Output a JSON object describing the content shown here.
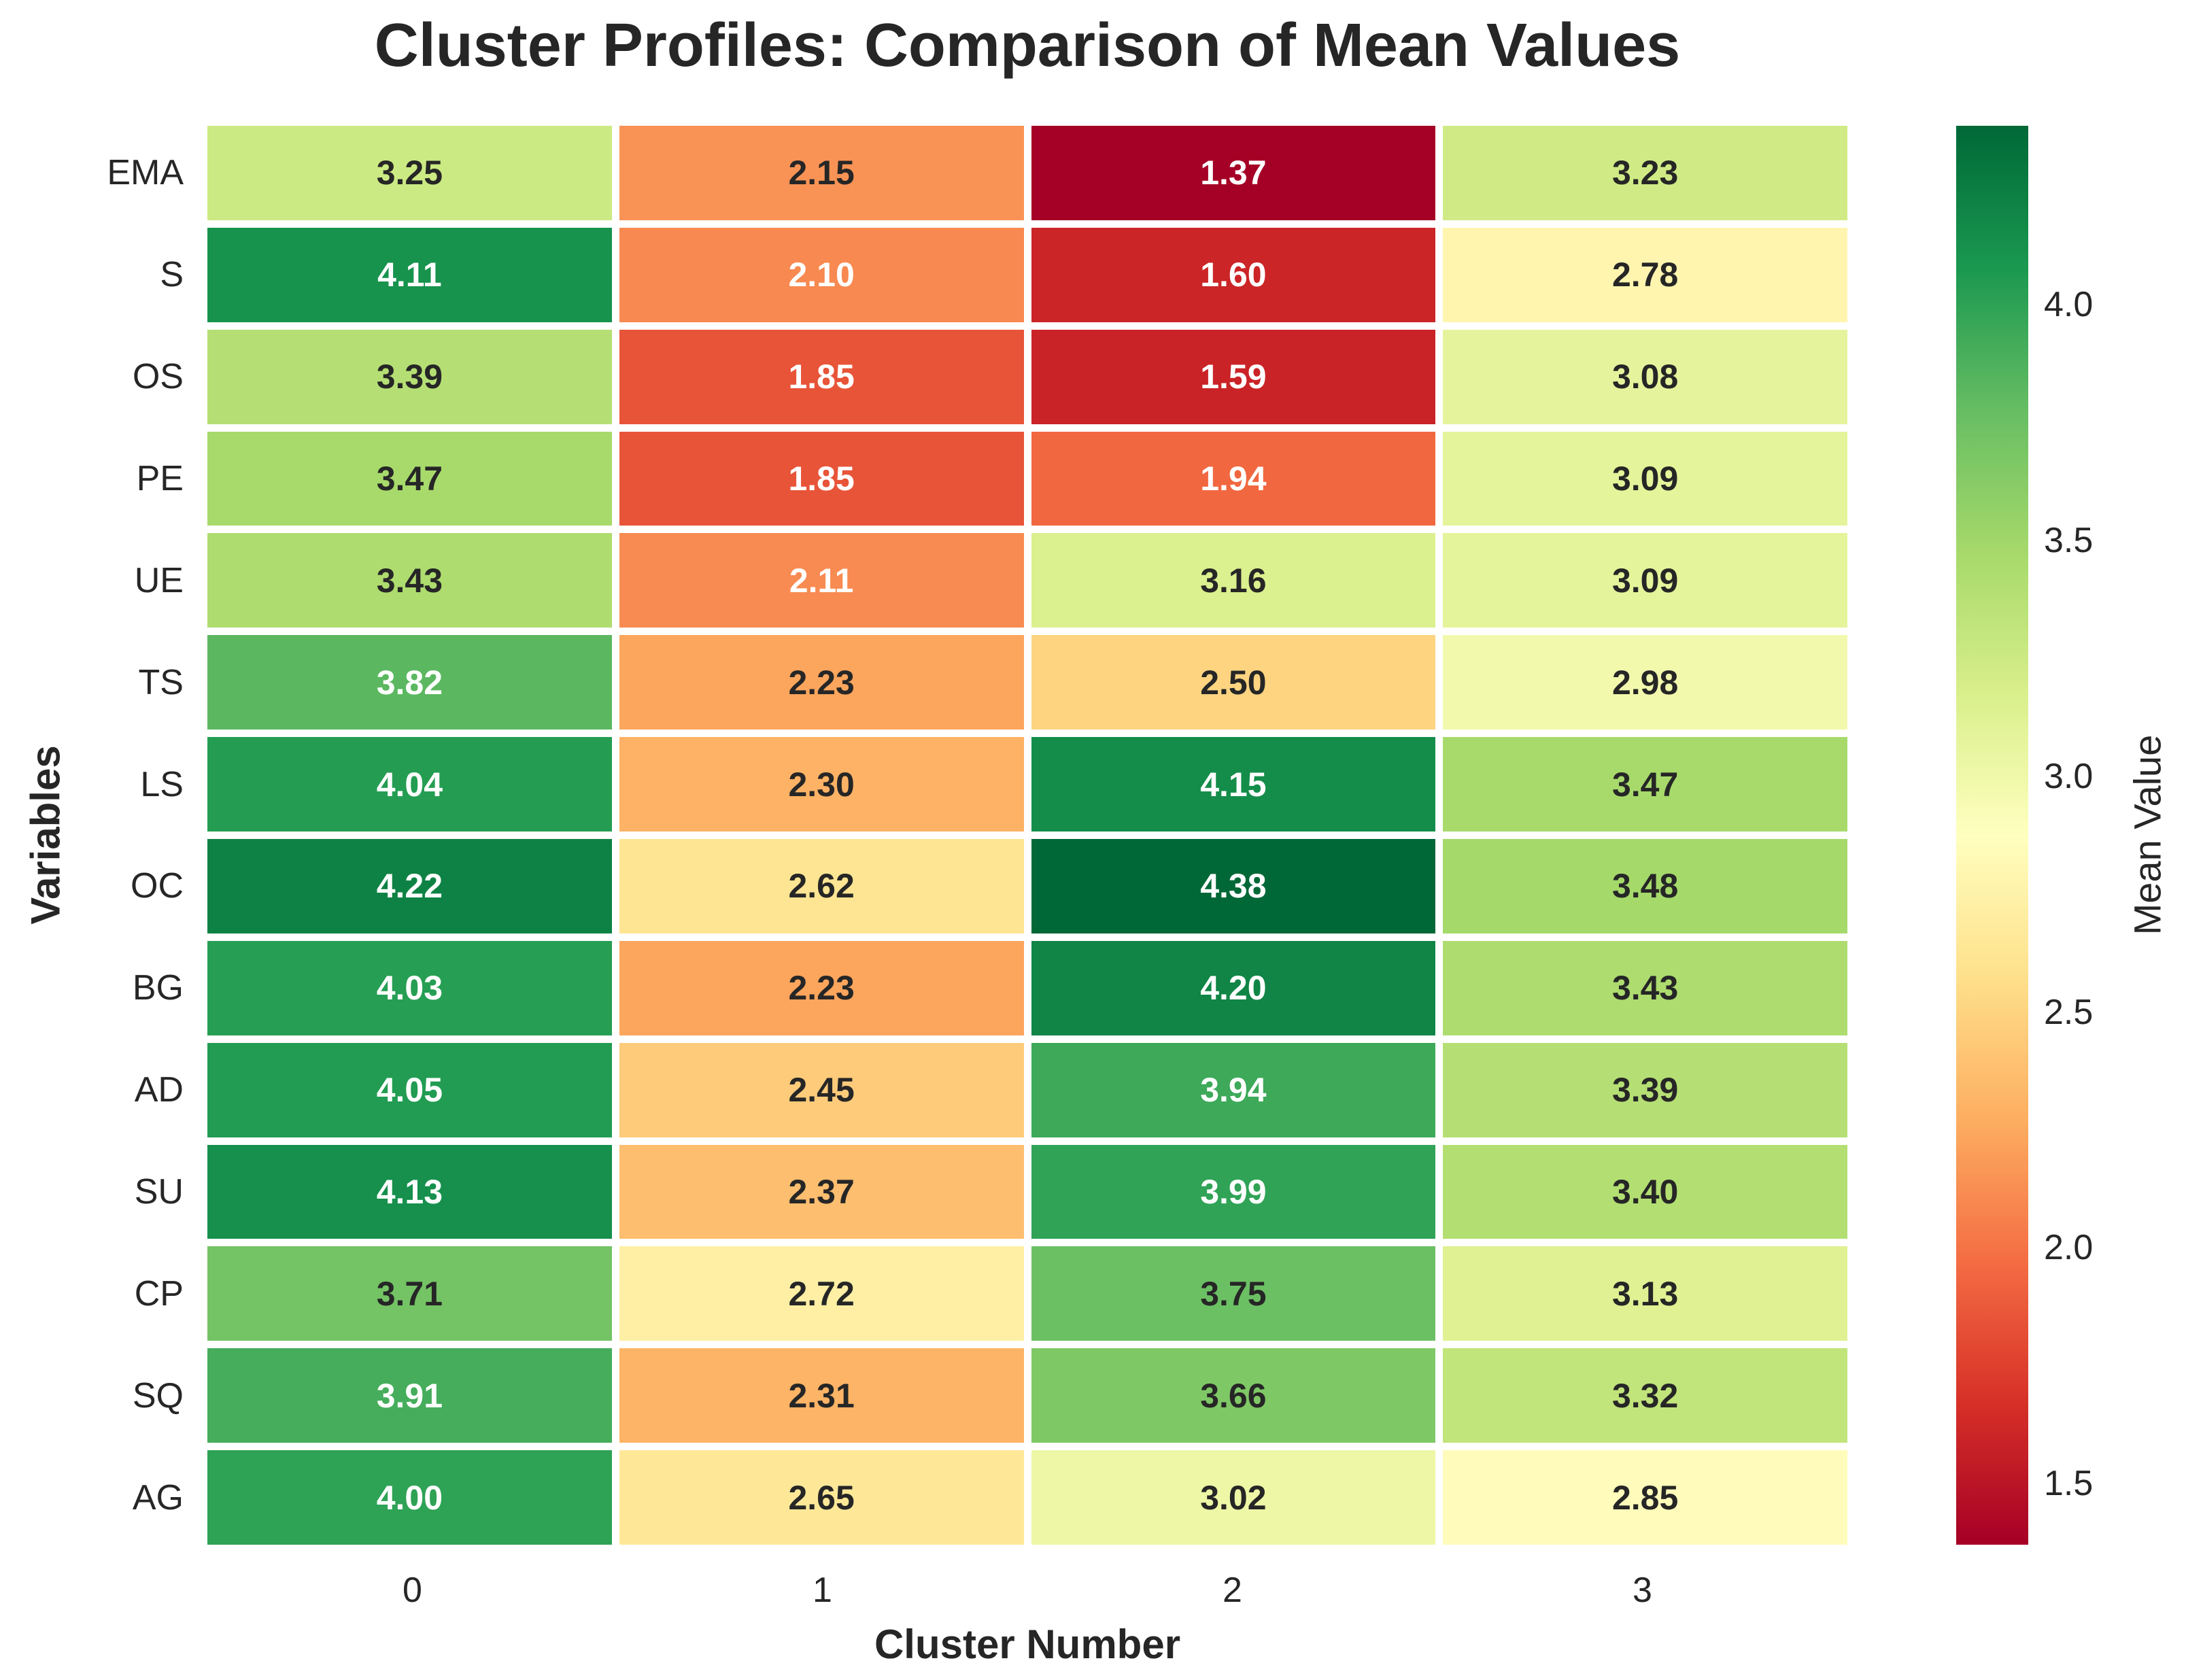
{
  "title": "Cluster Profiles: Comparison of Mean Values",
  "chart_data": {
    "type": "heatmap",
    "title": "Cluster Profiles: Comparison of Mean Values",
    "xlabel": "Cluster Number",
    "ylabel": "Variables",
    "categories": [
      "0",
      "1",
      "2",
      "3"
    ],
    "rows": [
      "EMA",
      "S",
      "OS",
      "PE",
      "UE",
      "TS",
      "LS",
      "OC",
      "BG",
      "AD",
      "SU",
      "CP",
      "SQ",
      "AG"
    ],
    "values": [
      [
        3.25,
        2.15,
        1.37,
        3.23
      ],
      [
        4.11,
        2.1,
        1.6,
        2.78
      ],
      [
        3.39,
        1.85,
        1.59,
        3.08
      ],
      [
        3.47,
        1.85,
        1.94,
        3.09
      ],
      [
        3.43,
        2.11,
        3.16,
        3.09
      ],
      [
        3.82,
        2.23,
        2.5,
        2.98
      ],
      [
        4.04,
        2.3,
        4.15,
        3.47
      ],
      [
        4.22,
        2.62,
        4.38,
        3.48
      ],
      [
        4.03,
        2.23,
        4.2,
        3.43
      ],
      [
        4.05,
        2.45,
        3.94,
        3.39
      ],
      [
        4.13,
        2.37,
        3.99,
        3.4
      ],
      [
        3.71,
        2.72,
        3.75,
        3.13
      ],
      [
        3.91,
        2.31,
        3.66,
        3.32
      ],
      [
        4.0,
        2.65,
        3.02,
        2.85
      ]
    ],
    "annotation_decimals": 2,
    "grid": false,
    "legend_position": "right-colorbar",
    "colormap": {
      "name": "RdYlGn",
      "vmin": 1.37,
      "vmax": 4.38,
      "stops_low_to_high": [
        "#a50026",
        "#d73027",
        "#f46d43",
        "#fdae61",
        "#fee08b",
        "#ffffbf",
        "#d9ef8b",
        "#a6d96a",
        "#66bd63",
        "#1a9850",
        "#006837"
      ]
    },
    "colorbar": {
      "label": "Mean Value",
      "ticks": [
        4.0,
        3.5,
        3.0,
        2.5,
        2.0,
        1.5
      ],
      "tick_labels": [
        "4.0",
        "3.5",
        "3.0",
        "2.5",
        "2.0",
        "1.5"
      ]
    },
    "annotation_text_colors": {
      "dark": "#262626",
      "light": "#ffffff",
      "luminance_threshold": 0.408
    }
  }
}
